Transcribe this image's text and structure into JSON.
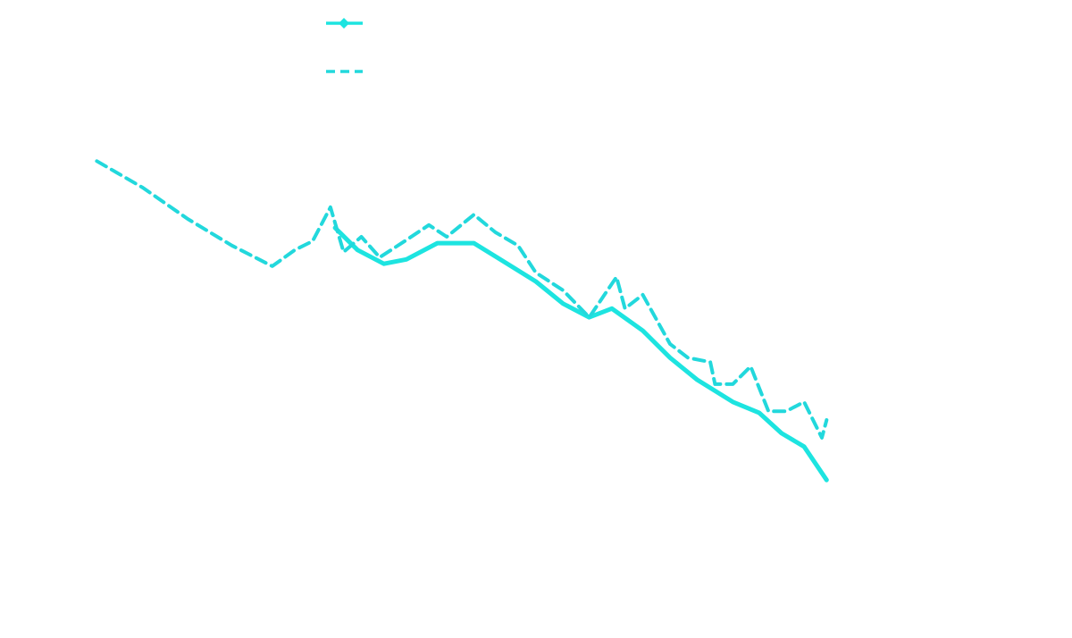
{
  "chart_data": {
    "type": "line",
    "xlim": [
      0,
      100
    ],
    "ylim": [
      0,
      100
    ],
    "legend": "top",
    "series": [
      {
        "color": "#1de4e0",
        "dash": false,
        "marker": "diamond",
        "x": [
          26.2,
          28.6,
          31.4,
          33.8,
          37.1,
          41.0,
          43.8,
          47.6,
          50.5,
          53.3,
          55.7,
          59.0,
          61.9,
          64.8,
          68.6,
          71.4,
          73.8,
          76.2,
          78.6
        ],
        "values": [
          80.9,
          76.4,
          73.6,
          74.5,
          77.8,
          77.8,
          74.5,
          70.0,
          65.5,
          62.7,
          64.5,
          60.0,
          54.5,
          50.0,
          45.5,
          43.3,
          39.1,
          36.4,
          29.6
        ]
      },
      {
        "color": "#22d8dc",
        "dash": true,
        "marker": "none",
        "x": [
          0.8,
          5.7,
          10.5,
          15.2,
          19.5,
          21.9,
          23.8,
          25.7,
          27.1,
          29.0,
          30.95,
          33.3,
          36.2,
          38.1,
          41.0,
          43.3,
          45.7,
          47.6,
          50.5,
          53.3,
          56.2,
          57.1,
          59.0,
          61.9,
          63.8,
          66.2,
          66.7,
          68.6,
          70.5,
          72.4,
          74.3,
          76.2,
          78.1,
          78.6
        ],
        "values": [
          94.5,
          89.1,
          82.7,
          77.3,
          73.1,
          76.4,
          78.2,
          85.1,
          76.0,
          79.1,
          74.9,
          77.8,
          81.5,
          79.1,
          83.6,
          80.0,
          77.3,
          71.8,
          68.2,
          62.7,
          70.9,
          64.5,
          67.3,
          57.3,
          54.5,
          53.6,
          49.1,
          49.1,
          52.7,
          43.6,
          43.6,
          45.5,
          38.2,
          41.8
        ]
      }
    ]
  }
}
